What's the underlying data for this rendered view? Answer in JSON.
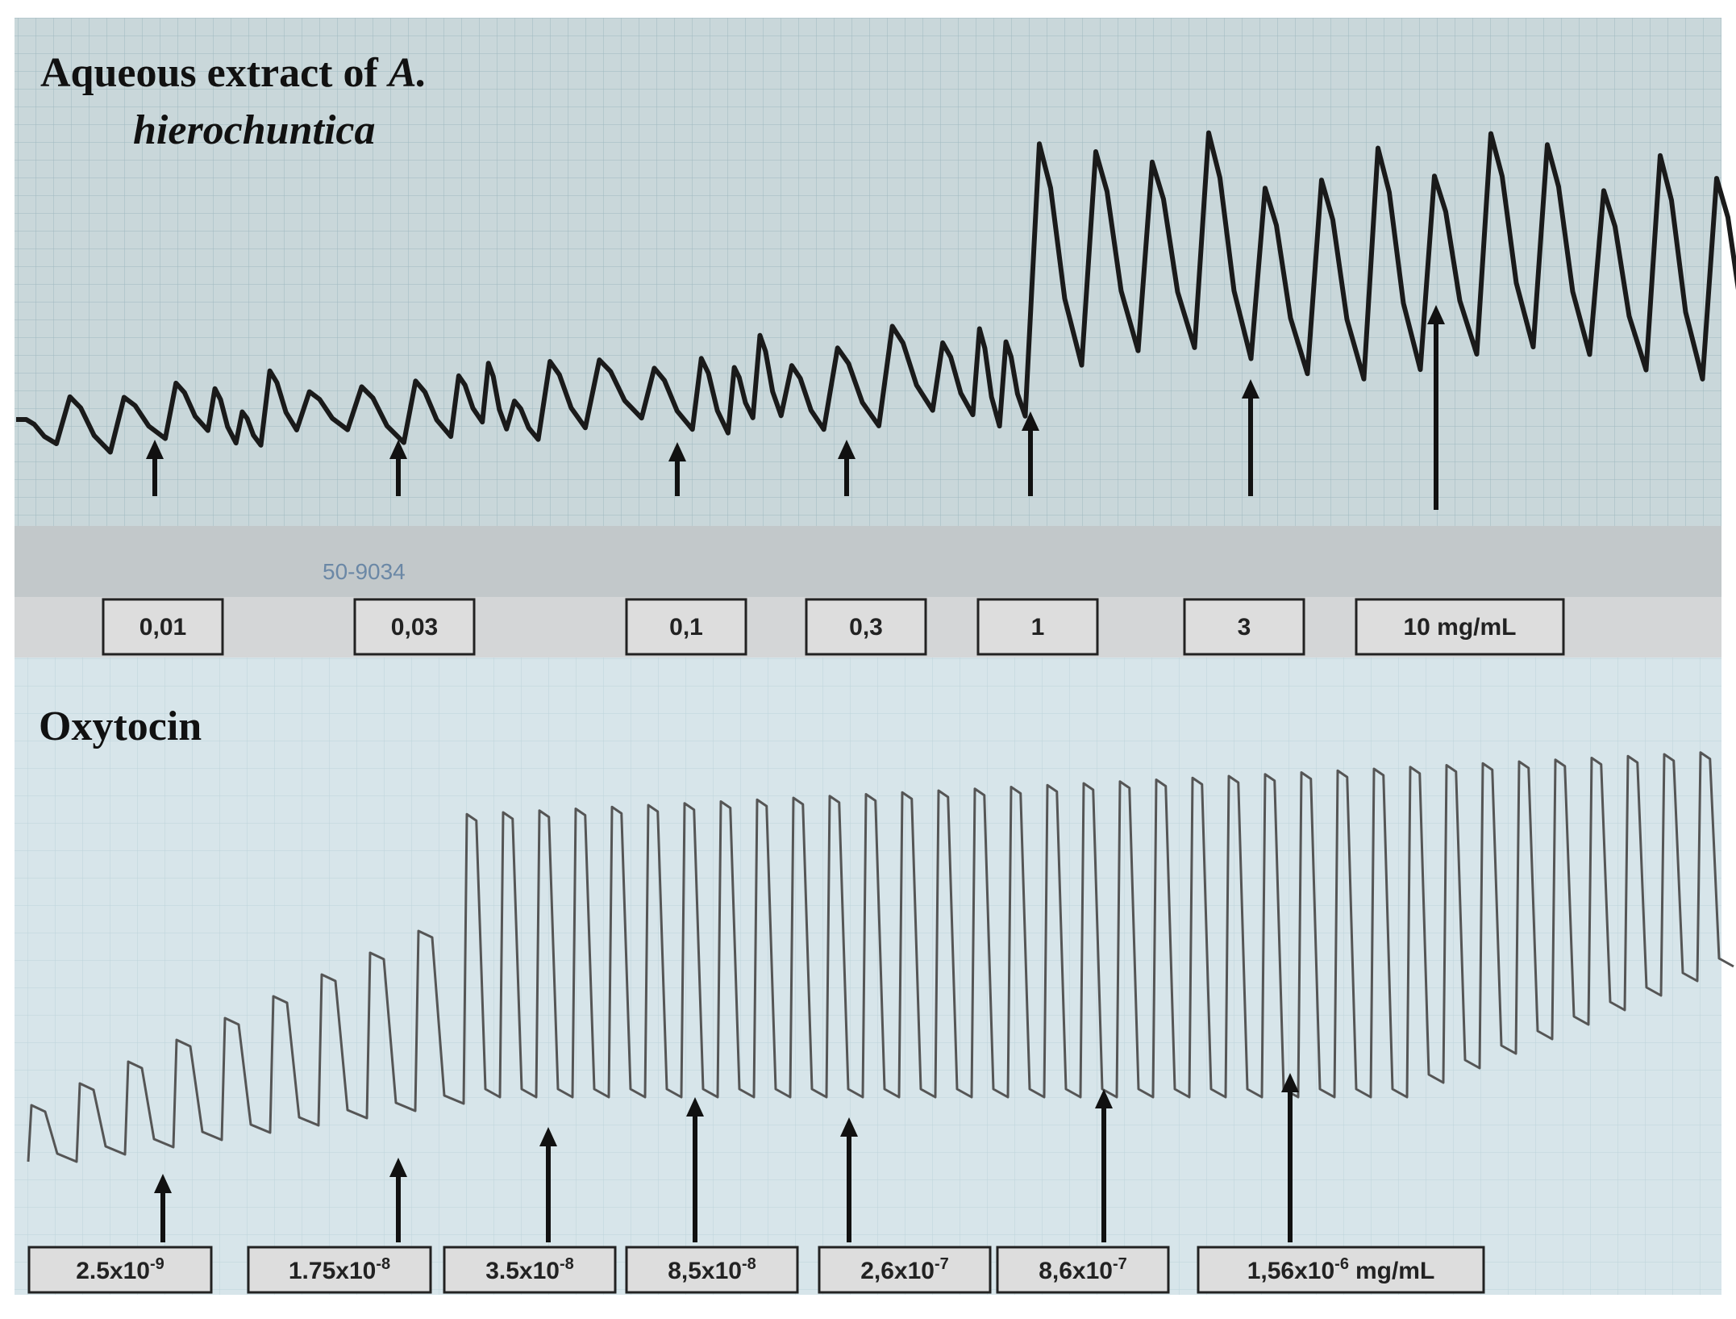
{
  "extract": {
    "title_text": "Aqueous extract of",
    "title_genus": "A.",
    "title_species": "hierochuntica",
    "paper_stamp": "50-9034",
    "doses": [
      "0,01",
      "0,03",
      "0,1",
      "0,3",
      "1",
      "3",
      "10 mg/mL"
    ]
  },
  "oxytocin": {
    "title": "Oxytocin",
    "doses": [
      {
        "base": "2.5x10",
        "exp": "-9"
      },
      {
        "base": "1.75x10",
        "exp": "-8"
      },
      {
        "base": "3.5x10",
        "exp": "-8"
      },
      {
        "base": "8,5x10",
        "exp": "-8"
      },
      {
        "base": "2,6x10",
        "exp": "-7"
      },
      {
        "base": "8,6x10",
        "exp": "-7"
      },
      {
        "base": "1,56x10",
        "exp": "-6",
        "unit": "mg/mL"
      }
    ]
  }
}
